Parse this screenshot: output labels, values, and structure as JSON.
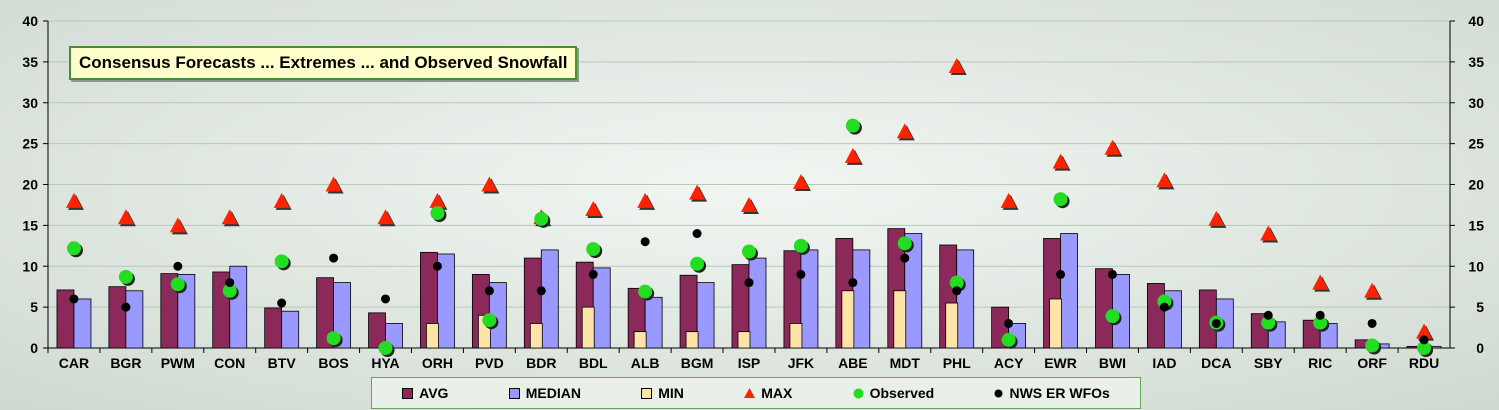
{
  "chart_data": {
    "type": "bar",
    "title": "Consensus Forecasts ... Extremes ... and Observed Snowfall",
    "categories": [
      "CAR",
      "BGR",
      "PWM",
      "CON",
      "BTV",
      "BOS",
      "HYA",
      "ORH",
      "PVD",
      "BDR",
      "BDL",
      "ALB",
      "BGM",
      "ISP",
      "JFK",
      "ABE",
      "MDT",
      "PHL",
      "ACY",
      "EWR",
      "BWI",
      "IAD",
      "DCA",
      "SBY",
      "RIC",
      "ORF",
      "RDU"
    ],
    "ylim": [
      0,
      40
    ],
    "yticks": [
      0,
      5,
      10,
      15,
      20,
      25,
      30,
      35,
      40
    ],
    "secondary_ylim": [
      0,
      40
    ],
    "grid": true,
    "legend_position": "bottom",
    "series": [
      {
        "name": "AVG",
        "kind": "bar",
        "color": "#8b2a5a",
        "values": [
          7.1,
          7.5,
          9.1,
          9.3,
          4.9,
          8.6,
          4.3,
          11.7,
          9.0,
          11.0,
          10.5,
          7.3,
          8.9,
          10.2,
          11.9,
          13.4,
          14.6,
          12.6,
          5.0,
          13.4,
          9.7,
          7.9,
          7.1,
          4.2,
          3.4,
          1.0,
          0.2
        ]
      },
      {
        "name": "MEDIAN",
        "kind": "bar",
        "color": "#9999ff",
        "values": [
          6.0,
          7.0,
          9.0,
          10.0,
          4.5,
          8.0,
          3.0,
          11.5,
          8.0,
          12.0,
          9.8,
          6.2,
          8.0,
          11.0,
          12.0,
          12.0,
          14.0,
          12.0,
          3.0,
          14.0,
          9.0,
          7.0,
          6.0,
          3.2,
          3.0,
          0.5,
          0.2
        ]
      },
      {
        "name": "MIN",
        "kind": "bar",
        "color": "#ffe4a8",
        "values": [
          0,
          0,
          0,
          0,
          0,
          0,
          0,
          3.0,
          4.0,
          3.0,
          5.0,
          2.0,
          2.0,
          2.0,
          3.0,
          7.0,
          7.0,
          5.5,
          0,
          6.0,
          0,
          0,
          0,
          0,
          0,
          0,
          0
        ]
      },
      {
        "name": "MAX",
        "kind": "triangle",
        "color": "#ff2200",
        "values": [
          18,
          16,
          15,
          16,
          18,
          20,
          16,
          18,
          20,
          16,
          17,
          18,
          19,
          17.5,
          20.3,
          23.5,
          26.5,
          34.5,
          18,
          22.8,
          24.5,
          20.5,
          15.8,
          14,
          8,
          7,
          2
        ]
      },
      {
        "name": "Observed",
        "kind": "circle",
        "color": "#22dd22",
        "values": [
          12.2,
          8.7,
          7.8,
          7.0,
          10.6,
          1.2,
          0,
          16.5,
          3.4,
          15.8,
          12.1,
          6.9,
          10.3,
          11.8,
          12.5,
          27.2,
          12.8,
          8.0,
          1.0,
          18.2,
          3.9,
          5.7,
          3.1,
          3.1,
          3.1,
          0.3,
          0
        ]
      },
      {
        "name": "NWS ER WFOs",
        "kind": "dot",
        "color": "#000000",
        "values": [
          6,
          5,
          10,
          8,
          5.5,
          11,
          6,
          10,
          7,
          7,
          9,
          13,
          14,
          8,
          9,
          8,
          11,
          7,
          3,
          9,
          9,
          5,
          3,
          4,
          4,
          3,
          1
        ]
      }
    ]
  }
}
